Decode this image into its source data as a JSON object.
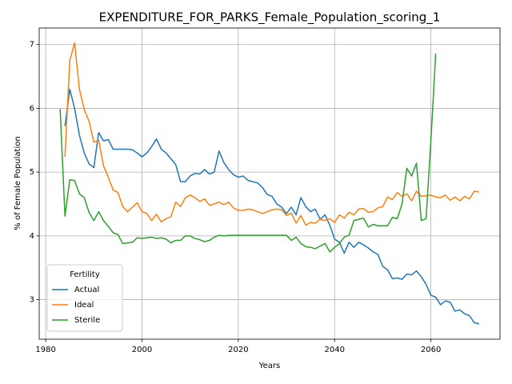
{
  "chart_data": {
    "type": "line",
    "title": "EXPENDITURE_FOR_PARKS_Female_Population_scoring_1",
    "x_label": "Years",
    "y_label": "% of Female Population",
    "legend_title": "Fertility",
    "legend": "lower left",
    "grid": true,
    "xlim": [
      1978.65,
      2074.35
    ],
    "ylim": [
      2.38,
      7.26
    ],
    "xticks": [
      1980,
      2000,
      2020,
      2040,
      2060
    ],
    "yticks": [
      3,
      4,
      5,
      6,
      7
    ],
    "x": [
      1983,
      1984,
      1985,
      1986,
      1987,
      1988,
      1989,
      1990,
      1991,
      1992,
      1993,
      1994,
      1995,
      1996,
      1997,
      1998,
      1999,
      2000,
      2001,
      2002,
      2003,
      2004,
      2005,
      2006,
      2007,
      2008,
      2009,
      2010,
      2011,
      2012,
      2013,
      2014,
      2015,
      2016,
      2017,
      2018,
      2019,
      2020,
      2021,
      2022,
      2023,
      2024,
      2025,
      2026,
      2027,
      2028,
      2029,
      2030,
      2031,
      2032,
      2033,
      2034,
      2035,
      2036,
      2037,
      2038,
      2039,
      2040,
      2041,
      2042,
      2043,
      2044,
      2045,
      2046,
      2047,
      2048,
      2049,
      2050,
      2051,
      2052,
      2053,
      2054,
      2055,
      2056,
      2057,
      2058,
      2059,
      2060,
      2061,
      2062,
      2063,
      2064,
      2065,
      2066,
      2067,
      2068,
      2069,
      2070
    ],
    "series": [
      {
        "name": "Actual",
        "color": "#1f77b4",
        "values": [
          null,
          5.72,
          6.3,
          6.0,
          5.58,
          5.3,
          5.13,
          5.07,
          5.62,
          5.49,
          5.51,
          5.36,
          5.36,
          5.36,
          5.36,
          5.35,
          5.3,
          5.24,
          5.3,
          5.4,
          5.52,
          5.36,
          5.3,
          5.21,
          5.12,
          4.85,
          4.85,
          4.94,
          4.98,
          4.97,
          5.04,
          4.97,
          5.0,
          5.33,
          5.15,
          5.04,
          4.96,
          4.92,
          4.94,
          4.87,
          4.85,
          4.83,
          4.76,
          4.65,
          4.62,
          4.5,
          4.45,
          4.35,
          4.45,
          4.33,
          4.6,
          4.46,
          4.38,
          4.42,
          4.26,
          4.33,
          4.17,
          3.95,
          3.9,
          3.73,
          3.9,
          3.82,
          3.9,
          3.86,
          3.81,
          3.75,
          3.71,
          3.52,
          3.47,
          3.33,
          3.34,
          3.32,
          3.4,
          3.39,
          3.45,
          3.36,
          3.24,
          3.07,
          3.04,
          2.92,
          2.98,
          2.96,
          2.82,
          2.84,
          2.78,
          2.75,
          2.64,
          2.62
        ]
      },
      {
        "name": "Ideal",
        "color": "#ff7f0e",
        "values": [
          null,
          5.24,
          6.75,
          7.03,
          6.3,
          5.98,
          5.8,
          5.47,
          5.5,
          5.1,
          4.92,
          4.72,
          4.68,
          4.46,
          4.38,
          4.45,
          4.52,
          4.38,
          4.35,
          4.24,
          4.34,
          4.22,
          4.27,
          4.3,
          4.53,
          4.46,
          4.6,
          4.64,
          4.6,
          4.54,
          4.58,
          4.48,
          4.5,
          4.53,
          4.49,
          4.53,
          4.44,
          4.4,
          4.4,
          4.42,
          4.41,
          4.38,
          4.35,
          4.38,
          4.41,
          4.42,
          4.41,
          4.32,
          4.36,
          4.2,
          4.32,
          4.17,
          4.21,
          4.2,
          4.26,
          4.24,
          4.27,
          4.21,
          4.33,
          4.28,
          4.37,
          4.33,
          4.42,
          4.43,
          4.37,
          4.38,
          4.44,
          4.46,
          4.61,
          4.57,
          4.68,
          4.62,
          4.66,
          4.55,
          4.7,
          4.62,
          4.63,
          4.64,
          4.61,
          4.6,
          4.64,
          4.56,
          4.61,
          4.55,
          4.62,
          4.58,
          4.7,
          4.69
        ]
      },
      {
        "name": "Sterile",
        "color": "#2ca02c",
        "values": [
          5.99,
          4.31,
          4.88,
          4.87,
          4.66,
          4.6,
          4.37,
          4.24,
          4.38,
          4.24,
          4.15,
          4.05,
          4.02,
          3.88,
          3.89,
          3.9,
          3.97,
          3.96,
          3.97,
          3.98,
          3.96,
          3.97,
          3.95,
          3.89,
          3.93,
          3.93,
          4.0,
          4.0,
          3.96,
          3.94,
          3.91,
          3.93,
          3.98,
          4.01,
          4.0,
          4.01,
          4.01,
          4.01,
          4.01,
          4.01,
          4.01,
          4.01,
          4.01,
          4.01,
          4.01,
          4.01,
          4.01,
          4.01,
          3.93,
          3.98,
          3.88,
          3.83,
          3.82,
          3.8,
          3.84,
          3.88,
          3.75,
          3.82,
          3.88,
          3.98,
          4.01,
          4.24,
          4.26,
          4.28,
          4.14,
          4.18,
          4.16,
          4.16,
          4.16,
          4.29,
          4.27,
          4.5,
          5.06,
          4.94,
          5.14,
          4.24,
          4.27,
          5.5,
          6.86,
          null,
          null,
          null,
          null,
          null,
          null,
          null,
          null,
          null
        ]
      }
    ]
  }
}
